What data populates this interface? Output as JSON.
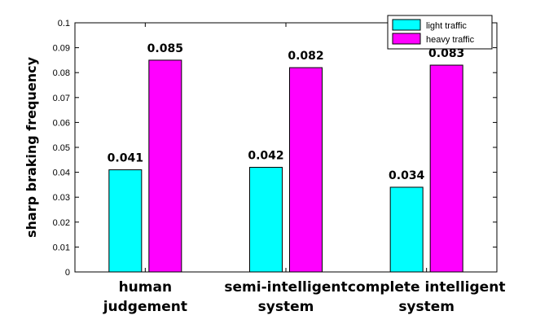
{
  "chart_data": {
    "type": "bar",
    "categories": [
      [
        "human",
        "judgement"
      ],
      [
        "semi-intelligent",
        "system"
      ],
      [
        "complete intelligent",
        "system"
      ]
    ],
    "series": [
      {
        "name": "light traffic",
        "color": "#00ffff",
        "values": [
          0.041,
          0.042,
          0.034
        ],
        "labels": [
          "0.041",
          "0.042",
          "0.034"
        ]
      },
      {
        "name": "heavy traffic",
        "color": "#ff00ff",
        "values": [
          0.085,
          0.082,
          0.083
        ],
        "labels": [
          "0.085",
          "0.082",
          "0.083"
        ]
      }
    ],
    "title": "",
    "xlabel": "",
    "ylabel": "sharp braking frequency",
    "ylim": [
      0,
      0.1
    ],
    "yticks": [
      "0",
      "0.01",
      "0.02",
      "0.03",
      "0.04",
      "0.05",
      "0.06",
      "0.07",
      "0.08",
      "0.09",
      "0.1"
    ],
    "grid": false,
    "legend_position": "top-right"
  }
}
